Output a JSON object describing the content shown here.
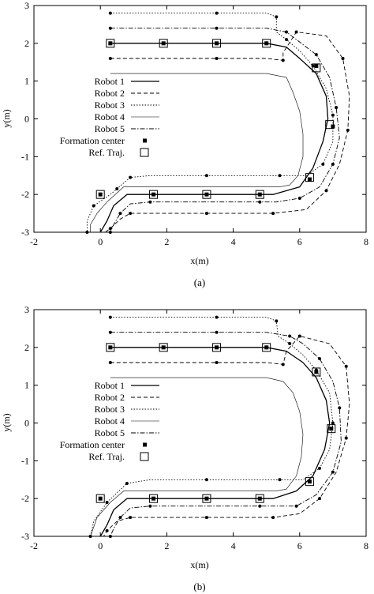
{
  "figure": {
    "caption_a": "(a)",
    "caption_b": "(b)"
  },
  "chart_data": [
    {
      "type": "line",
      "panel": "a",
      "xlabel": "x(m)",
      "ylabel": "y(m)",
      "xlim": [
        -2,
        8
      ],
      "ylim": [
        -3,
        3
      ],
      "xticks": [
        "-2",
        "0",
        "2",
        "4",
        "6",
        "8"
      ],
      "yticks": [
        "-3",
        "-2",
        "-1",
        "0",
        "1",
        "2",
        "3"
      ],
      "grid": false,
      "legend_position": "center-left",
      "legend": [
        "Robot 1",
        "Robot 2",
        "Robot 3",
        "Robot 4",
        "Robot 5",
        "Formation center",
        "Ref. Traj."
      ],
      "series": [
        {
          "name": "Robot 1",
          "style": "solid",
          "x": [
            0.3,
            1.9,
            3.5,
            5.0,
            5.6,
            6.0,
            6.5,
            6.8,
            6.85,
            6.7,
            6.4,
            6.0,
            5.2,
            4.8,
            3.2,
            1.5,
            0.8,
            0.4,
            0.2,
            0.0
          ],
          "y": [
            2.0,
            2.0,
            2.0,
            2.0,
            1.9,
            1.6,
            1.2,
            0.6,
            0.0,
            -0.6,
            -1.3,
            -1.8,
            -2.0,
            -2.0,
            -2.0,
            -2.0,
            -2.0,
            -2.3,
            -2.7,
            -3.0
          ]
        },
        {
          "name": "Robot 2",
          "style": "dashed",
          "x": [
            0.3,
            1.9,
            3.5,
            5.0,
            5.5,
            5.5,
            5.9,
            6.8,
            7.3,
            7.5,
            7.45,
            7.2,
            6.8,
            6.2,
            5.2,
            4.6,
            3.2,
            1.5,
            0.9,
            0.6,
            0.3,
            0.15
          ],
          "y": [
            1.6,
            1.6,
            1.6,
            1.6,
            1.55,
            1.75,
            2.3,
            2.2,
            1.6,
            0.6,
            -0.3,
            -1.2,
            -1.9,
            -2.4,
            -2.5,
            -2.5,
            -2.5,
            -2.5,
            -2.5,
            -2.65,
            -2.9,
            -3.0
          ]
        },
        {
          "name": "Robot 3",
          "style": "dotted",
          "x": [
            0.3,
            1.9,
            3.5,
            5.0,
            5.3,
            5.3,
            5.6,
            6.0,
            6.4,
            6.8,
            7.0,
            7.0,
            6.7,
            6.2,
            5.4,
            4.9,
            3.2,
            1.5,
            0.9,
            0.7,
            0.5,
            0.3,
            -0.2,
            -0.4,
            -0.4
          ],
          "y": [
            2.8,
            2.8,
            2.8,
            2.8,
            2.7,
            2.3,
            2.1,
            1.8,
            1.4,
            0.8,
            0.1,
            -0.6,
            -1.2,
            -1.5,
            -1.5,
            -1.5,
            -1.5,
            -1.5,
            -1.55,
            -1.7,
            -1.85,
            -2.0,
            -2.3,
            -2.7,
            -3.0
          ]
        },
        {
          "name": "Robot 4",
          "style": "thin",
          "x": [
            0.3,
            1.9,
            3.5,
            5.0,
            5.6,
            5.8,
            6.0,
            6.1,
            6.1,
            5.95,
            5.7,
            5.4,
            4.9,
            3.2,
            1.5,
            0.7,
            0.2,
            -0.1,
            -0.3,
            -0.3
          ],
          "y": [
            1.2,
            1.2,
            1.2,
            1.2,
            1.1,
            0.7,
            0.2,
            -0.4,
            -1.0,
            -1.5,
            -1.75,
            -1.8,
            -1.8,
            -1.8,
            -1.8,
            -1.8,
            -2.2,
            -2.5,
            -2.8,
            -3.0
          ]
        },
        {
          "name": "Robot 5",
          "style": "dashdot",
          "x": [
            0.3,
            1.9,
            3.5,
            5.0,
            5.6,
            5.9,
            6.5,
            6.9,
            7.1,
            7.2,
            7.0,
            6.6,
            6.0,
            5.3,
            4.8,
            3.2,
            1.5,
            0.9,
            0.6,
            0.4,
            0.3
          ],
          "y": [
            2.4,
            2.4,
            2.4,
            2.4,
            2.3,
            2.1,
            1.7,
            1.1,
            0.3,
            -0.5,
            -1.2,
            -1.8,
            -2.1,
            -2.2,
            -2.2,
            -2.2,
            -2.2,
            -2.25,
            -2.5,
            -2.8,
            -3.0
          ]
        }
      ],
      "formation_center": {
        "x": [
          0.3,
          1.9,
          3.5,
          5.0,
          6.5,
          7.0,
          6.3,
          4.8,
          3.2,
          1.6,
          0.0
        ],
        "y": [
          2.0,
          2.0,
          2.0,
          2.0,
          1.4,
          -0.2,
          -1.6,
          -2.0,
          -2.0,
          -2.0,
          -2.0
        ]
      },
      "ref_traj": {
        "x": [
          0.3,
          1.9,
          3.5,
          5.0,
          6.5,
          6.9,
          6.3,
          4.8,
          3.2,
          1.6,
          0.0
        ],
        "y": [
          2.0,
          2.0,
          2.0,
          2.0,
          1.35,
          -0.15,
          -1.55,
          -2.0,
          -2.0,
          -2.0,
          -2.0
        ]
      }
    },
    {
      "type": "line",
      "panel": "b",
      "xlabel": "x(m)",
      "ylabel": "y(m)",
      "xlim": [
        -2,
        8
      ],
      "ylim": [
        -3,
        3
      ],
      "xticks": [
        "-2",
        "0",
        "2",
        "4",
        "6",
        "8"
      ],
      "yticks": [
        "-3",
        "-2",
        "-1",
        "0",
        "1",
        "2",
        "3"
      ],
      "grid": false,
      "legend_position": "center-left",
      "legend": [
        "Robot 1",
        "Robot 2",
        "Robot 3",
        "Robot 4",
        "Robot 5",
        "Formation center",
        "Ref. Traj."
      ],
      "series": [
        {
          "name": "Robot 1",
          "style": "solid",
          "x": [
            0.3,
            1.9,
            3.5,
            5.0,
            5.6,
            6.1,
            6.5,
            6.8,
            6.9,
            6.75,
            6.4,
            5.9,
            5.2,
            4.8,
            3.2,
            1.5,
            0.8,
            0.4,
            0.2,
            0.0
          ],
          "y": [
            2.0,
            2.0,
            2.0,
            2.0,
            1.9,
            1.6,
            1.2,
            0.6,
            0.0,
            -0.7,
            -1.4,
            -1.8,
            -2.0,
            -2.0,
            -2.0,
            -2.0,
            -2.0,
            -2.3,
            -2.7,
            -3.0
          ]
        },
        {
          "name": "Robot 2",
          "style": "dashed",
          "x": [
            0.3,
            1.9,
            3.5,
            5.0,
            5.5,
            5.6,
            6.0,
            6.9,
            7.4,
            7.5,
            7.4,
            7.1,
            6.6,
            6.0,
            5.2,
            4.7,
            3.2,
            1.5,
            0.9,
            0.5,
            0.2,
            0.1
          ],
          "y": [
            1.6,
            1.6,
            1.6,
            1.6,
            1.55,
            1.9,
            2.3,
            2.1,
            1.5,
            0.5,
            -0.4,
            -1.3,
            -2.0,
            -2.4,
            -2.5,
            -2.5,
            -2.5,
            -2.5,
            -2.5,
            -2.6,
            -2.85,
            -3.0
          ]
        },
        {
          "name": "Robot 3",
          "style": "dotted",
          "x": [
            0.3,
            1.9,
            3.5,
            5.0,
            5.3,
            5.35,
            5.7,
            6.1,
            6.5,
            6.9,
            7.0,
            6.9,
            6.6,
            6.1,
            5.4,
            4.9,
            3.2,
            1.5,
            0.8,
            0.5,
            0.2,
            -0.2,
            -0.3
          ],
          "y": [
            2.8,
            2.8,
            2.8,
            2.8,
            2.7,
            2.3,
            2.1,
            1.8,
            1.4,
            0.8,
            0.0,
            -0.7,
            -1.2,
            -1.5,
            -1.5,
            -1.5,
            -1.5,
            -1.5,
            -1.6,
            -1.85,
            -2.1,
            -2.6,
            -3.0
          ]
        },
        {
          "name": "Robot 4",
          "style": "thin",
          "x": [
            0.3,
            1.9,
            3.5,
            5.0,
            5.5,
            5.8,
            6.0,
            6.1,
            6.05,
            5.9,
            5.6,
            5.3,
            4.9,
            3.2,
            1.5,
            0.7,
            0.3,
            -0.1,
            -0.3
          ],
          "y": [
            1.2,
            1.2,
            1.2,
            1.2,
            1.1,
            0.8,
            0.3,
            -0.3,
            -0.9,
            -1.4,
            -1.75,
            -1.8,
            -1.8,
            -1.8,
            -1.8,
            -1.8,
            -2.1,
            -2.5,
            -3.0
          ]
        },
        {
          "name": "Robot 5",
          "style": "dashdot",
          "x": [
            0.3,
            1.9,
            3.5,
            5.0,
            5.7,
            6.1,
            6.6,
            7.0,
            7.2,
            7.25,
            7.0,
            6.5,
            5.9,
            5.3,
            4.8,
            3.2,
            1.5,
            0.9,
            0.6,
            0.4,
            0.3
          ],
          "y": [
            2.4,
            2.4,
            2.4,
            2.4,
            2.3,
            2.1,
            1.7,
            1.1,
            0.4,
            -0.5,
            -1.3,
            -1.9,
            -2.2,
            -2.2,
            -2.2,
            -2.2,
            -2.2,
            -2.25,
            -2.5,
            -2.8,
            -3.0
          ]
        }
      ],
      "formation_center": {
        "x": [
          0.3,
          1.9,
          3.5,
          5.0,
          6.5,
          6.95,
          6.3,
          4.8,
          3.2,
          1.6,
          0.0
        ],
        "y": [
          2.0,
          2.0,
          2.0,
          2.0,
          1.35,
          -0.15,
          -1.55,
          -2.0,
          -2.0,
          -2.0,
          -2.0
        ]
      },
      "ref_traj": {
        "x": [
          0.3,
          1.9,
          3.5,
          5.0,
          6.5,
          6.95,
          6.3,
          4.8,
          3.2,
          1.6,
          0.0
        ],
        "y": [
          2.0,
          2.0,
          2.0,
          2.0,
          1.35,
          -0.15,
          -1.55,
          -2.0,
          -2.0,
          -2.0,
          -2.0
        ]
      }
    }
  ]
}
